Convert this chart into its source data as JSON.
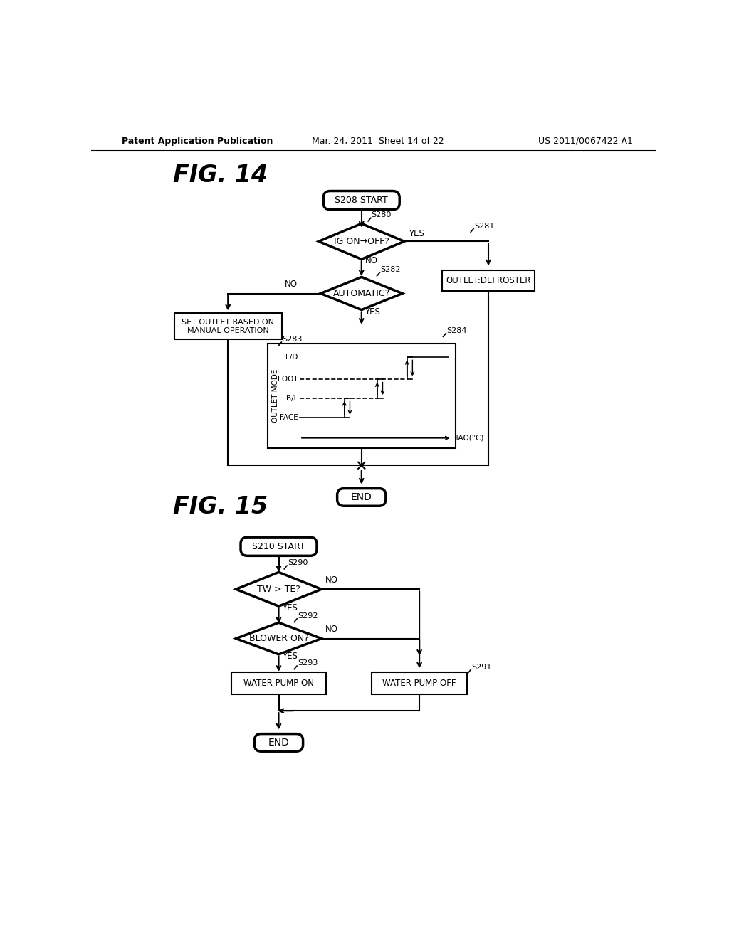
{
  "background_color": "#ffffff",
  "header_left": "Patent Application Publication",
  "header_center": "Mar. 24, 2011  Sheet 14 of 22",
  "header_right": "US 2011/0067422 A1",
  "fig14_label": "FIG. 14",
  "fig15_label": "FIG. 15"
}
